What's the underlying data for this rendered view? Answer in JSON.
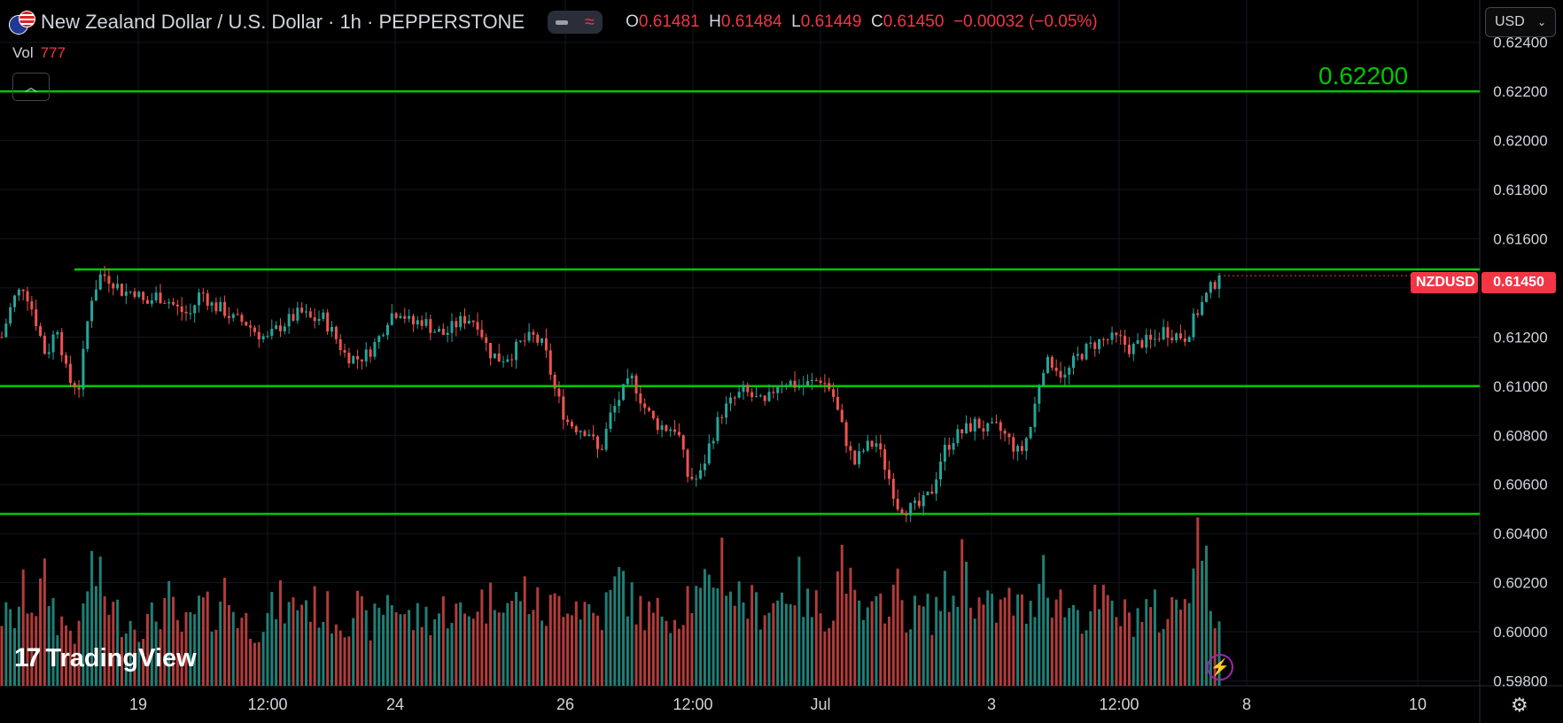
{
  "header": {
    "symbol_title": "New Zealand Dollar / U.S. Dollar · 1h · PEPPERSTONE",
    "ohlc": {
      "o_label": "O",
      "o_value": "0.61481",
      "h_label": "H",
      "h_value": "0.61484",
      "l_label": "L",
      "l_value": "0.61449",
      "c_label": "C",
      "c_value": "0.61450",
      "change": "−0.00032 (−0.05%)"
    },
    "vol_label": "Vol",
    "vol_value": "777",
    "currency_select": "USD"
  },
  "icons": {
    "flag": "nz-us-flag-icon",
    "pill": "indicator-toggle-icon",
    "collapse": "chevron-up-icon",
    "bolt": "lightning-icon",
    "settings": "gear-icon",
    "dropdown": "chevron-down-icon"
  },
  "branding": {
    "logo_text": "TradingView"
  },
  "colors": {
    "up": "#26a69a",
    "down": "#ef5350",
    "level_line": "#00c800",
    "vol_up": "#1f7f76",
    "vol_down": "#b23c3a",
    "badge": "#f23645"
  },
  "chart_data": {
    "type": "candlestick",
    "symbol": "NZDUSD",
    "last_price": "0.61450",
    "ylim": [
      0.5978,
      0.625
    ],
    "y_ticks": [
      "0.62400",
      "0.62200",
      "0.62000",
      "0.61800",
      "0.61600",
      "0.61400",
      "0.61200",
      "0.61000",
      "0.60800",
      "0.60600",
      "0.60400",
      "0.60200",
      "0.60000",
      "0.59800"
    ],
    "x_ticks": [
      "19",
      "12:00",
      "24",
      "26",
      "12:00",
      "Jul",
      "3",
      "12:00",
      "8",
      "10"
    ],
    "horizontal_levels": [
      {
        "value": 0.622,
        "label": "0.62200"
      },
      {
        "value": 0.61475
      },
      {
        "value": 0.61
      },
      {
        "value": 0.6048
      }
    ],
    "price_path": [
      0.612,
      0.6135,
      0.6141,
      0.6128,
      0.6112,
      0.6125,
      0.6102,
      0.61,
      0.6135,
      0.6146,
      0.6143,
      0.6138,
      0.6139,
      0.6133,
      0.6137,
      0.6135,
      0.6131,
      0.6129,
      0.6139,
      0.6133,
      0.6131,
      0.6127,
      0.6126,
      0.6122,
      0.6119,
      0.6124,
      0.6127,
      0.613,
      0.6127,
      0.6128,
      0.6121,
      0.6113,
      0.6111,
      0.6113,
      0.6119,
      0.6129,
      0.6131,
      0.6125,
      0.6127,
      0.6123,
      0.6121,
      0.6125,
      0.6128,
      0.6126,
      0.6114,
      0.6111,
      0.6113,
      0.6118,
      0.612,
      0.6116,
      0.6098,
      0.6086,
      0.6083,
      0.6082,
      0.6072,
      0.6088,
      0.6097,
      0.6103,
      0.6092,
      0.6085,
      0.6083,
      0.6083,
      0.6063,
      0.6062,
      0.6077,
      0.6089,
      0.6094,
      0.6098,
      0.6095,
      0.6092,
      0.6101,
      0.6102,
      0.61,
      0.6101,
      0.6103,
      0.6098,
      0.6082,
      0.6068,
      0.6075,
      0.6077,
      0.6065,
      0.6051,
      0.605,
      0.6051,
      0.6057,
      0.6073,
      0.6079,
      0.6082,
      0.6085,
      0.6082,
      0.6083,
      0.6078,
      0.6072,
      0.6084,
      0.6108,
      0.611,
      0.6103,
      0.6111,
      0.6115,
      0.6118,
      0.6119,
      0.6119,
      0.6115,
      0.6118,
      0.6118,
      0.6123,
      0.6121,
      0.612,
      0.613,
      0.6138,
      0.6145
    ],
    "volume_profile": [
      0.42,
      0.38,
      0.55,
      0.48,
      0.62,
      0.4,
      0.35,
      0.3,
      0.72,
      0.58,
      0.45,
      0.4,
      0.38,
      0.36,
      0.42,
      0.52,
      0.33,
      0.36,
      0.48,
      0.4,
      0.58,
      0.45,
      0.38,
      0.35,
      0.4,
      0.5,
      0.44,
      0.52,
      0.48,
      0.45,
      0.42,
      0.38,
      0.48,
      0.35,
      0.4,
      0.55,
      0.45,
      0.38,
      0.42,
      0.4,
      0.46,
      0.44,
      0.4,
      0.52,
      0.48,
      0.62,
      0.44,
      0.58,
      0.5,
      0.42,
      0.48,
      0.55,
      0.5,
      0.46,
      0.4,
      0.52,
      0.66,
      0.48,
      0.44,
      0.4,
      0.48,
      0.4,
      0.55,
      0.5,
      0.58,
      0.8,
      0.55,
      0.52,
      0.46,
      0.48,
      0.5,
      0.58,
      0.6,
      0.44,
      0.48,
      0.42,
      0.82,
      0.46,
      0.4,
      0.42,
      0.55,
      0.56,
      0.4,
      0.46,
      0.42,
      0.54,
      0.52,
      0.8,
      0.48,
      0.46,
      0.44,
      0.5,
      0.46,
      0.42,
      0.8,
      0.52,
      0.48,
      0.46,
      0.4,
      0.5,
      0.46,
      0.42,
      0.4,
      0.44,
      0.46,
      0.38,
      0.48,
      0.56,
      0.98,
      0.62,
      0.3
    ]
  }
}
